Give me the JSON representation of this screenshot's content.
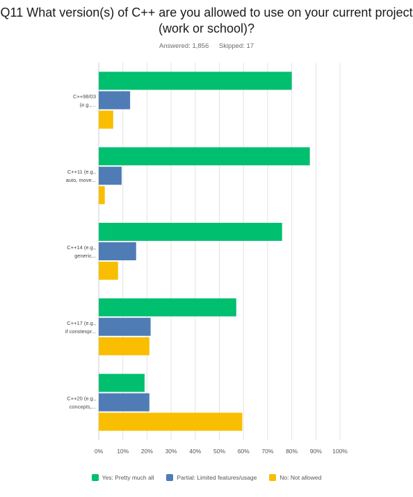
{
  "header": {
    "title_line1": "Q11 What version(s) of C++ are you allowed to use on your current project",
    "title_line2": "(work or school)?",
    "answered": "Answered: 1,856",
    "skipped": "Skipped: 17"
  },
  "chart_data": {
    "type": "bar",
    "orientation": "horizontal",
    "categories": [
      [
        "C++98/03",
        "(e.g.,..."
      ],
      [
        "C++11 (e.g.,",
        "auto, move..."
      ],
      [
        "C++14 (e.g.,",
        "generic..."
      ],
      [
        "C++17 (e.g.,",
        "if constexpr..."
      ],
      [
        "C++20 (e.g.,",
        "concepts,..."
      ]
    ],
    "series": [
      {
        "name": "Yes: Pretty much all",
        "color": "#00bf6f",
        "values": [
          80,
          87.5,
          76,
          57,
          19
        ]
      },
      {
        "name": "Partial: Limited features/usage",
        "color": "#507cb6",
        "values": [
          13,
          9.5,
          15.5,
          21.5,
          21
        ]
      },
      {
        "name": "No: Not allowed",
        "color": "#f9be00",
        "values": [
          6,
          2.5,
          8,
          21,
          59.5
        ]
      }
    ],
    "xlim": [
      0,
      100
    ],
    "xticks": [
      "0%",
      "10%",
      "20%",
      "30%",
      "40%",
      "50%",
      "60%",
      "70%",
      "80%",
      "90%",
      "100%"
    ],
    "grid": true,
    "legend_position": "bottom"
  }
}
